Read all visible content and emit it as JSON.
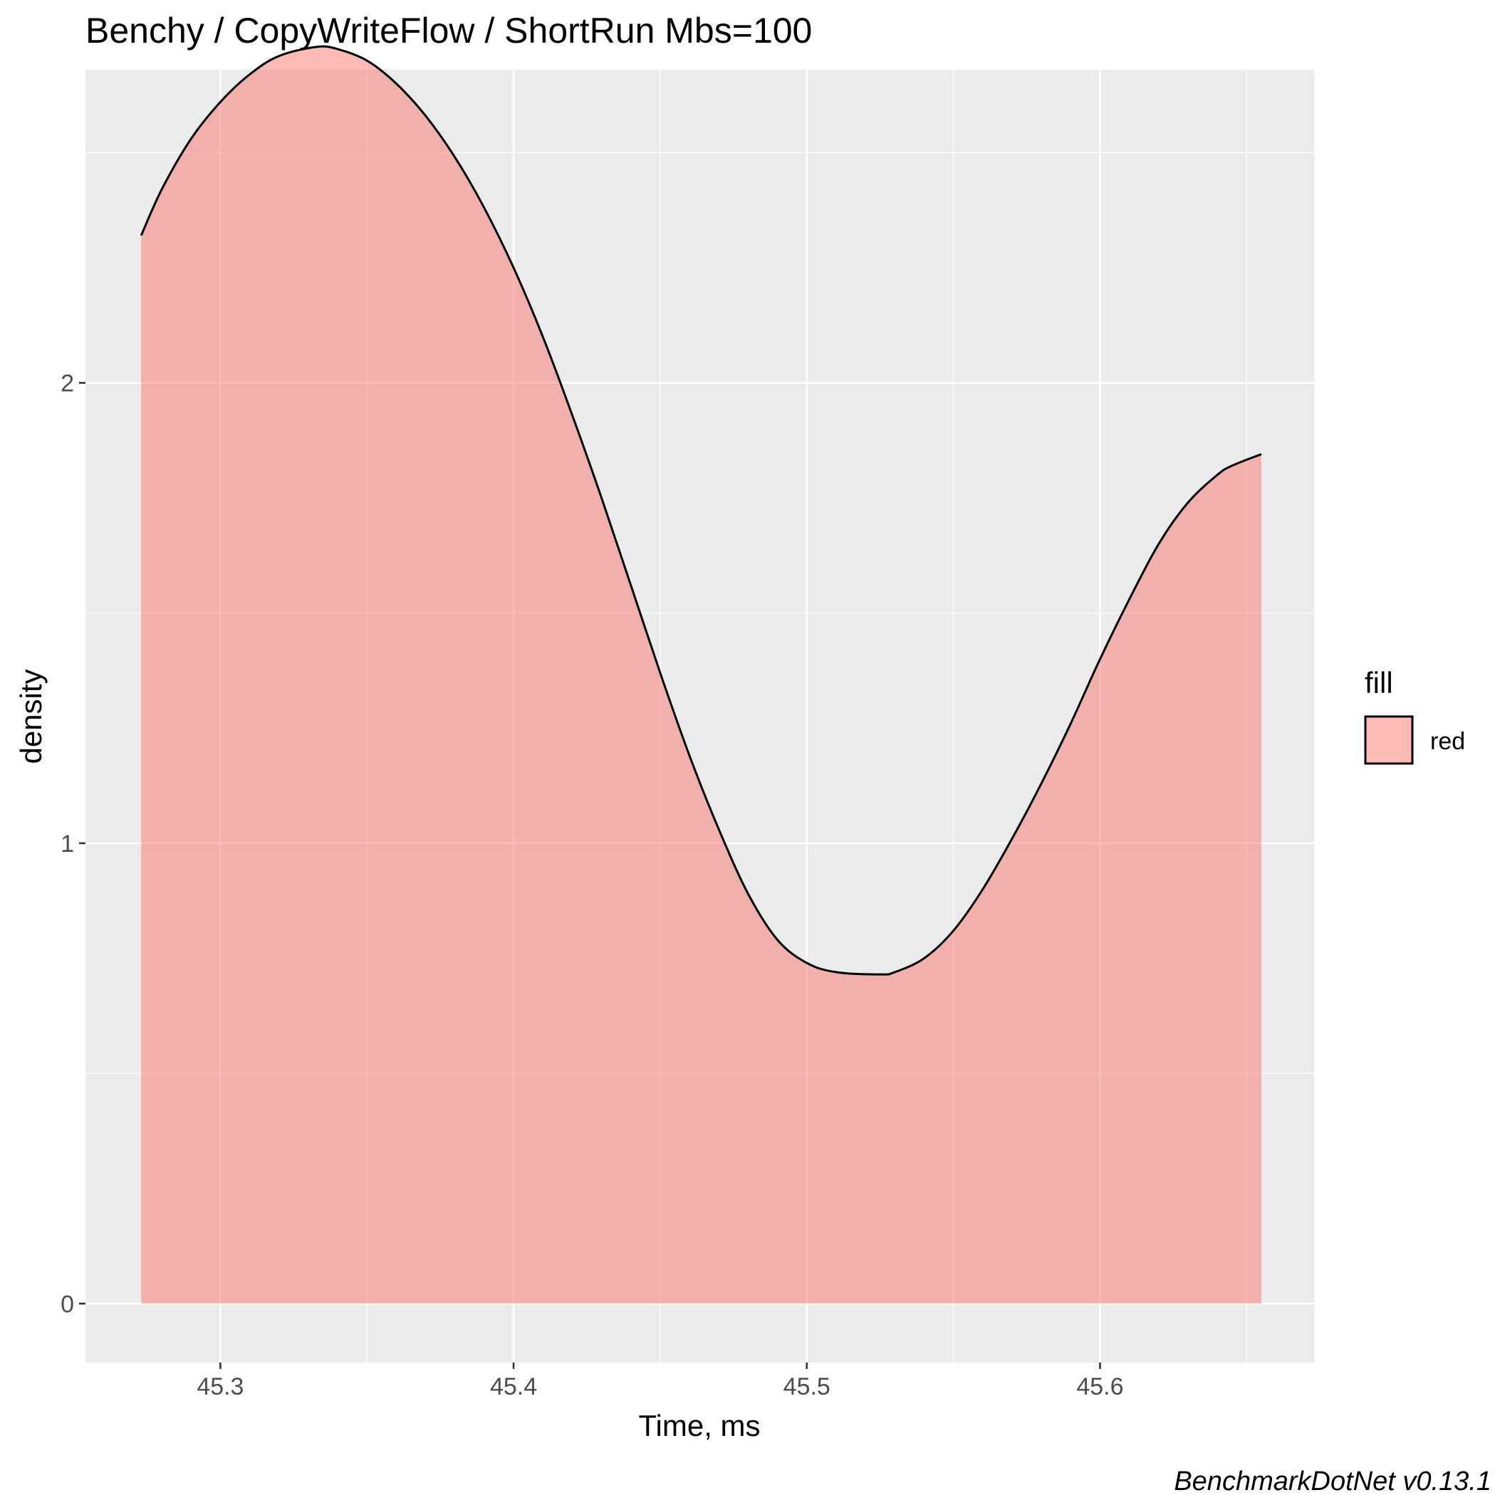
{
  "chart_data": {
    "type": "area",
    "title": "Benchy / CopyWriteFlow / ShortRun Mbs=100",
    "xlabel": "Time, ms",
    "ylabel": "density",
    "xlim": [
      45.254,
      45.673
    ],
    "ylim": [
      -0.128,
      2.68
    ],
    "x_ticks": [
      45.3,
      45.4,
      45.5,
      45.6
    ],
    "x_tick_labels": [
      "45.3",
      "45.4",
      "45.5",
      "45.6"
    ],
    "x_minor_ticks": [
      45.35,
      45.45,
      45.55,
      45.65
    ],
    "y_ticks": [
      0,
      1,
      2
    ],
    "y_tick_labels": [
      "0",
      "1",
      "2"
    ],
    "y_minor_ticks": [
      0.5,
      1.5,
      2.5
    ],
    "grid": true,
    "legend": {
      "title": "fill",
      "position": "right",
      "entries": [
        "red"
      ]
    },
    "fill_color": "#F8766D",
    "fill_alpha": 0.5,
    "line_color": "#000000",
    "panel_background": "#EBEBEB",
    "series": [
      {
        "x": [
          45.273,
          45.28,
          45.29,
          45.3,
          45.31,
          45.32,
          45.333,
          45.34,
          45.35,
          45.36,
          45.37,
          45.38,
          45.39,
          45.4,
          45.41,
          45.42,
          45.43,
          45.44,
          45.45,
          45.46,
          45.47,
          45.48,
          45.49,
          45.5,
          45.51,
          45.525,
          45.53,
          45.54,
          45.55,
          45.56,
          45.57,
          45.58,
          45.59,
          45.6,
          45.61,
          45.62,
          45.63,
          45.64,
          45.645,
          45.655
        ],
        "y": [
          2.32,
          2.42,
          2.53,
          2.61,
          2.67,
          2.71,
          2.73,
          2.725,
          2.7,
          2.65,
          2.58,
          2.49,
          2.38,
          2.25,
          2.1,
          1.93,
          1.75,
          1.56,
          1.37,
          1.19,
          1.03,
          0.89,
          0.79,
          0.74,
          0.72,
          0.715,
          0.72,
          0.75,
          0.81,
          0.9,
          1.01,
          1.13,
          1.26,
          1.4,
          1.53,
          1.65,
          1.74,
          1.8,
          1.82,
          1.845
        ]
      }
    ]
  },
  "caption": "BenchmarkDotNet v0.13.1"
}
